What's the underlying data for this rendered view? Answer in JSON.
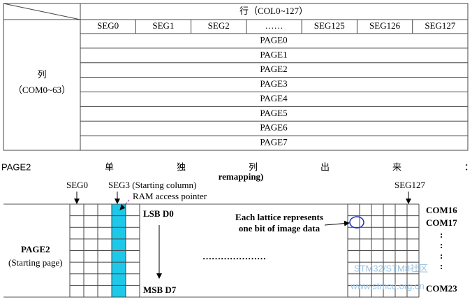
{
  "table": {
    "col_header": "行（COL0~127）",
    "row_header": [
      "列",
      "（COM0~63）"
    ],
    "columns": [
      "SEG0",
      "SEG1",
      "SEG2",
      "……",
      "SEG125",
      "SEG126",
      "SEG127"
    ],
    "pages": [
      "PAGE0",
      "PAGE1",
      "PAGE2",
      "PAGE3",
      "PAGE4",
      "PAGE5",
      "PAGE6",
      "PAGE7"
    ]
  },
  "caption": [
    "PAGE2",
    "单",
    "独",
    "列",
    "出",
    "来",
    "："
  ],
  "diagram": {
    "remap_note": "remapping)",
    "seg_start": "SEG0",
    "seg_col": "SEG3 (Starting column)",
    "pointer": "RAM access pointer",
    "seg_end": "SEG127",
    "lsb": "LSB D0",
    "msb": "MSB D7",
    "lattice": [
      "Each lattice represents",
      "one bit of image data"
    ],
    "page": "PAGE2",
    "page_note": "(Starting page)",
    "dots": "…………………",
    "coms": [
      "COM16",
      "COM17",
      ":",
      ":",
      ":",
      ":",
      "COM23"
    ]
  },
  "watermark": [
    "STM32/STM8社区",
    "www.stmcu.org.cn"
  ]
}
